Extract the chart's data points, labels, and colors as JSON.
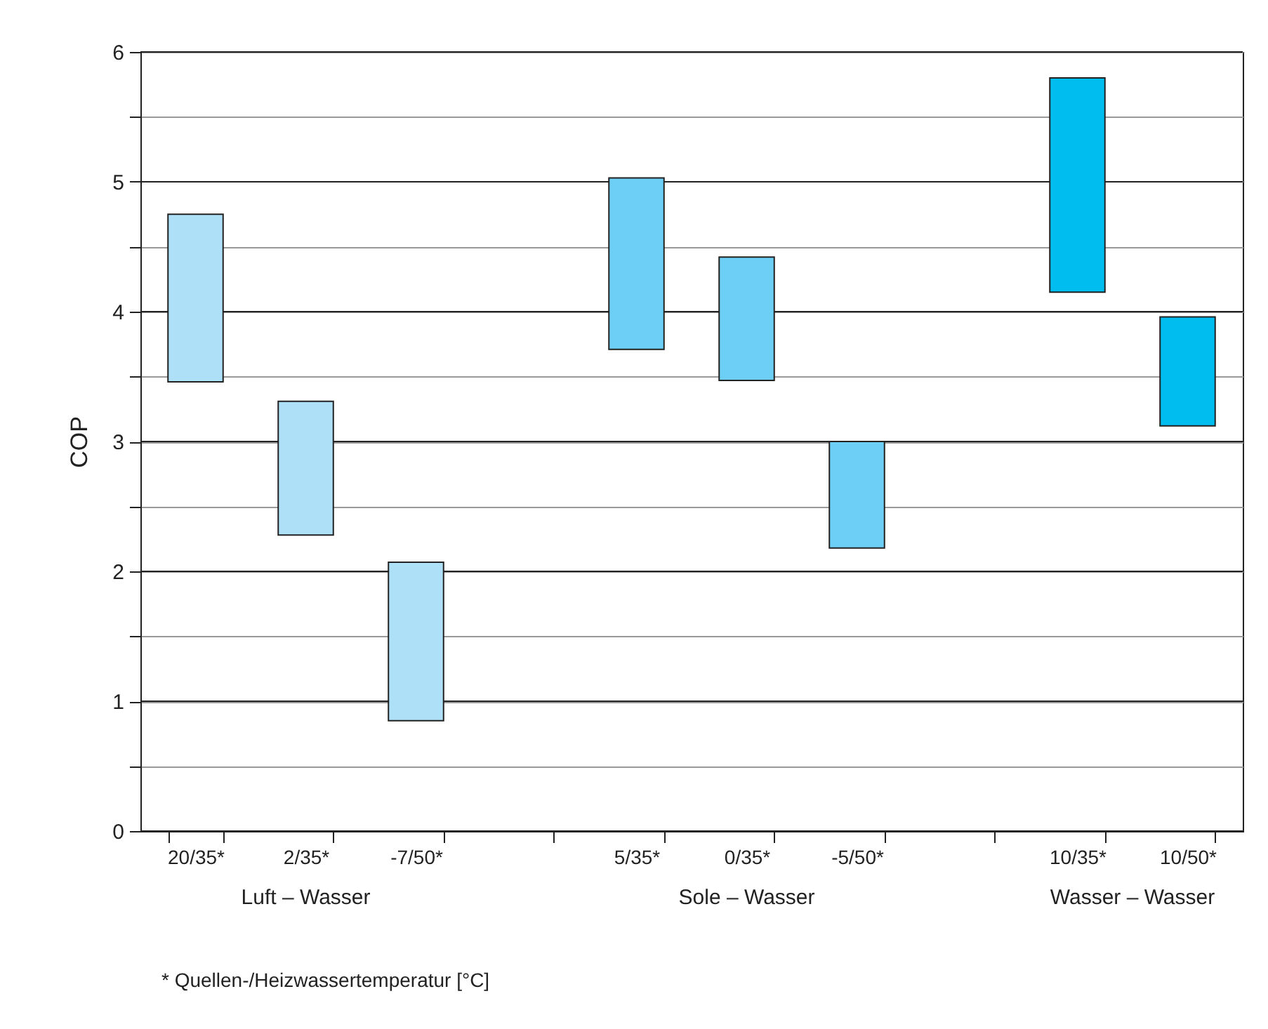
{
  "chart_data": {
    "type": "bar",
    "ylabel": "COP",
    "categories": [
      "20/35*",
      "2/35*",
      "-7/50*",
      null,
      "5/35*",
      "0/35*",
      "-5/50*",
      null,
      "10/35*",
      "10/50*"
    ],
    "base": [
      3.46,
      2.28,
      0.85,
      null,
      3.71,
      3.47,
      2.18,
      null,
      4.15,
      3.12
    ],
    "values": [
      1.29,
      1.03,
      1.22,
      null,
      1.32,
      0.95,
      0.82,
      null,
      1.65,
      0.84
    ],
    "colors": [
      "#aee0f8",
      "#aee0f8",
      "#aee0f8",
      null,
      "#6dcff5",
      "#6dcff5",
      "#6dcff5",
      null,
      "#00bdf0",
      "#00bdf0"
    ],
    "ylim": [
      0,
      6
    ],
    "yticks": [
      0,
      {
        "value": 0.5,
        "label": null
      },
      1,
      {
        "value": 1.5,
        "label": null
      },
      2,
      {
        "value": 2.5,
        "label": null
      },
      3,
      {
        "value": 3.5,
        "label": null
      },
      4,
      {
        "value": 4.5,
        "label": null
      },
      5,
      {
        "value": 5.5,
        "label": null
      },
      6
    ],
    "grid": "y",
    "annotations": [
      "Luft – Wasser",
      "Sole – Wasser",
      "Wasser – Wasser",
      "* Quellen-/Heizwassertemperatur [°C]"
    ]
  }
}
